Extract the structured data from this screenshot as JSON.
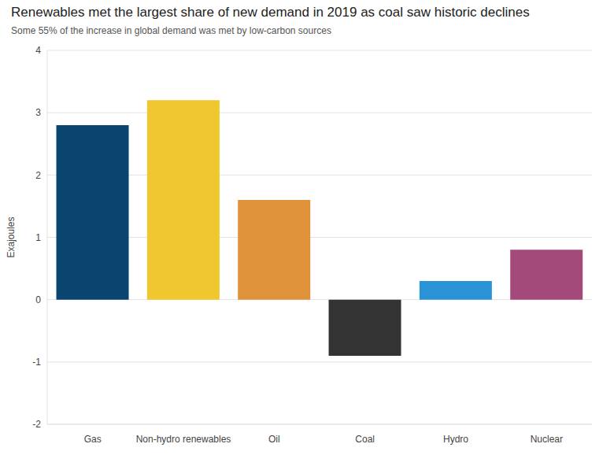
{
  "chart_data": {
    "type": "bar",
    "title": "Renewables met the largest share of new demand in 2019 as coal saw historic declines",
    "subtitle": "Some 55% of the increase in global demand was met by low-carbon sources",
    "y_label": "Exajoules",
    "categories": [
      "Gas",
      "Non-hydro renewables",
      "Oil",
      "Coal",
      "Hydro",
      "Nuclear"
    ],
    "values": [
      2.8,
      3.2,
      1.6,
      -0.9,
      0.3,
      0.8
    ],
    "colors": [
      "#0a4570",
      "#f0c72e",
      "#e0923a",
      "#333333",
      "#2a93d5",
      "#a34a7a"
    ],
    "ylim": [
      -2,
      4
    ],
    "yticks": [
      -2,
      -1,
      0,
      1,
      2,
      3,
      4
    ],
    "grid": true
  }
}
